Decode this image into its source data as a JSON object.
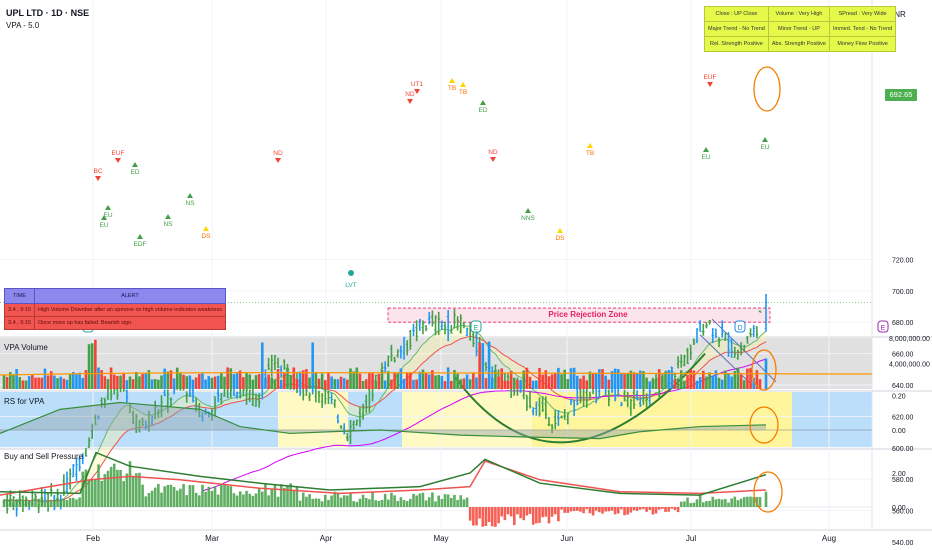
{
  "header": {
    "symbol": "UPL LTD · 1D · NSE",
    "indicator": "VPA - 5.0",
    "currency": "INR",
    "last_price": "692.65"
  },
  "status_table": [
    [
      "Close : UP Close",
      "Volume : Very High",
      "SPread : Very Wide"
    ],
    [
      "Major Trend - No Trend",
      "Minor Trend - UP",
      "Immed. Tend - No Trend"
    ],
    [
      "Rel. Strength Positive",
      "Abs. Strength Positive",
      "Money Flow Positive"
    ]
  ],
  "alert_table": {
    "headers": [
      "TIME",
      "ALERT"
    ],
    "rows": [
      [
        "3.4 , 9:15",
        "High Volume Downbar after an upmove on high volume indicates weakness"
      ],
      [
        "3.4 , 9:15",
        "Once more up has failed. Bearish sign."
      ]
    ]
  },
  "price_zone_label": "Price Rejection Zone",
  "panes": {
    "volume": "VPA Volume",
    "rs": "RS for VPA",
    "bsp": "Buy and Sell Pressure"
  },
  "x_labels": [
    "Feb",
    "Mar",
    "Apr",
    "May",
    "Jun",
    "Jul",
    "Aug"
  ],
  "markers": {
    "EUF": "EUF",
    "BC": "BC",
    "ED": "ED",
    "EU": "EU",
    "EDF": "EDF",
    "NS": "NS",
    "DS": "DS",
    "ND": "ND",
    "LVT": "LVT",
    "UT1": "UT1",
    "TB": "TB",
    "NNS": "NNS",
    "E": "E",
    "D": "D"
  },
  "colors": {
    "up": "#43a047",
    "down": "#f44336",
    "blue": "#2196f3",
    "ema_green": "#66bb6a",
    "ema_red": "#ef5350",
    "ema_purple": "#d500f9",
    "rejection": "#e91e63",
    "trendline": "#2e7d32",
    "circle": "#f57c00",
    "highlight_yellow": "#fff59d",
    "highlight_blue": "#bbdefb"
  },
  "chart_data": {
    "type": "candlestick",
    "price_axis": {
      "ticks": [
        560,
        580,
        600,
        620,
        640,
        660,
        680,
        700,
        720
      ],
      "range": [
        540,
        730
      ]
    },
    "price_rejection_zone": [
      680,
      689
    ],
    "volume_axis": {
      "ticks": [
        "4,000,000.00",
        "8,000,000.00"
      ],
      "range": [
        0,
        8000000
      ]
    },
    "rs_axis": {
      "ticks": [
        "0.00",
        "0.20"
      ],
      "range": [
        -0.12,
        0.24
      ]
    },
    "bsp_axis": {
      "ticks": [
        "0.00",
        "2.00"
      ],
      "range": [
        -1.3,
        3.5
      ]
    },
    "last_price": 692.65
  }
}
